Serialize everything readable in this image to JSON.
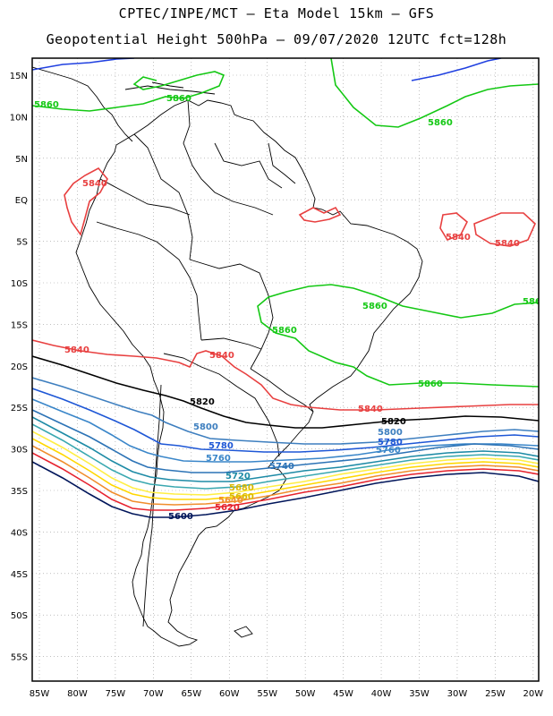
{
  "header": {
    "line1": "CPTEC/INPE/MCT –  Eta Model 15km – GFS",
    "line2": "Geopotential Height 500hPa – 09/07/2020 12UTC fct=128h"
  },
  "axes": {
    "lon_labels": [
      "85W",
      "80W",
      "75W",
      "70W",
      "65W",
      "60W",
      "55W",
      "50W",
      "45W",
      "40W",
      "35W",
      "30W",
      "25W",
      "20W"
    ],
    "lat_labels": [
      "15N",
      "10N",
      "5N",
      "EQ",
      "5S",
      "10S",
      "15S",
      "20S",
      "25S",
      "30S",
      "35S",
      "40S",
      "45S",
      "50S",
      "55S"
    ]
  },
  "colors": {
    "5600": "#00155a",
    "5620": "#e6232f",
    "5640": "#f08d2c",
    "5660": "#ffd700",
    "5680": "#ffee44",
    "5700": "#3aa8b0",
    "5720": "#1e8ba6",
    "5740": "#2c73b6",
    "5760": "#3a86c9",
    "5780": "#1e57d6",
    "5800": "#3e7fbf",
    "5820": "#000000",
    "5840": "#e84040",
    "5860": "#14c814",
    "5880": "#2040e0",
    "coast": "#000000",
    "grid": "#999999"
  },
  "contour_labels": [
    {
      "text": "5860",
      "color": "#14c814"
    },
    {
      "text": "5860",
      "color": "#14c814"
    },
    {
      "text": "5860",
      "color": "#14c814"
    },
    {
      "text": "5860",
      "color": "#14c814"
    },
    {
      "text": "5860",
      "color": "#14c814"
    },
    {
      "text": "5860",
      "color": "#14c814"
    },
    {
      "text": "586",
      "color": "#14c814"
    },
    {
      "text": "5840",
      "color": "#e84040"
    },
    {
      "text": "5840",
      "color": "#e84040"
    },
    {
      "text": "5840",
      "color": "#e84040"
    },
    {
      "text": "5840",
      "color": "#e84040"
    },
    {
      "text": "5840",
      "color": "#e84040"
    },
    {
      "text": "5840",
      "color": "#e84040"
    },
    {
      "text": "5820",
      "color": "#000000"
    },
    {
      "text": "5820",
      "color": "#000000"
    },
    {
      "text": "5800",
      "color": "#3e7fbf"
    },
    {
      "text": "5800",
      "color": "#3e7fbf"
    },
    {
      "text": "5780",
      "color": "#1e57d6"
    },
    {
      "text": "5780",
      "color": "#1e57d6"
    },
    {
      "text": "5760",
      "color": "#3a86c9"
    },
    {
      "text": "5760",
      "color": "#3a86c9"
    },
    {
      "text": "5740",
      "color": "#2c73b6"
    },
    {
      "text": "5720",
      "color": "#1e8ba6"
    },
    {
      "text": "5680",
      "color": "#d9b800"
    },
    {
      "text": "5660",
      "color": "#d9b800"
    },
    {
      "text": "5640",
      "color": "#f08d2c"
    },
    {
      "text": "5620",
      "color": "#e6232f"
    },
    {
      "text": "5600",
      "color": "#00155a"
    }
  ]
}
